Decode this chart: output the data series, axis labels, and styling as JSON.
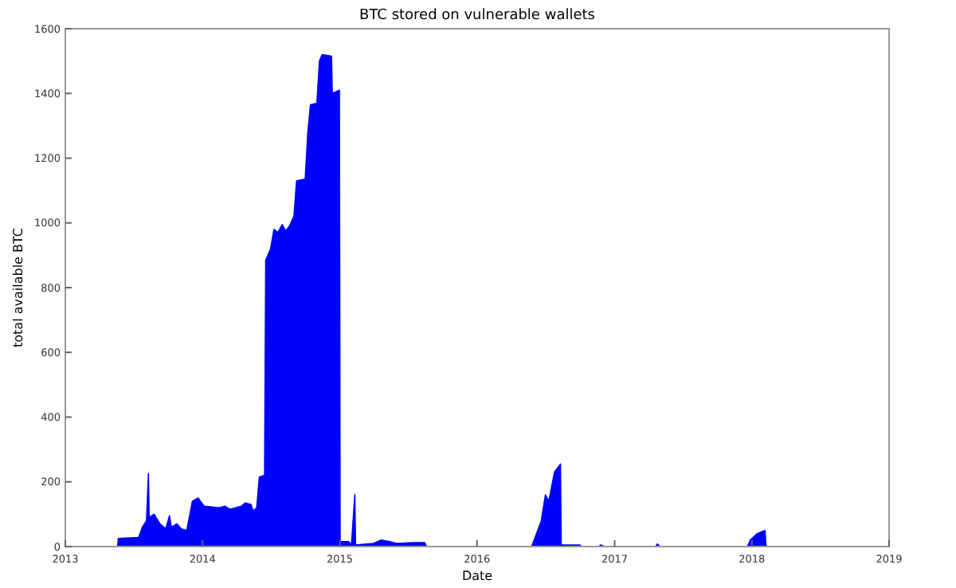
{
  "chart_data": {
    "type": "area",
    "title": "BTC stored on vulnerable wallets",
    "xlabel": "Date",
    "ylabel": "total available BTC",
    "x": [
      "2013-01-01",
      "2013-05-20",
      "2013-05-22",
      "2013-07-15",
      "2013-07-25",
      "2013-08-05",
      "2013-08-10",
      "2013-08-12",
      "2013-08-25",
      "2013-09-10",
      "2013-09-25",
      "2013-10-05",
      "2013-10-10",
      "2013-10-25",
      "2013-11-05",
      "2013-11-20",
      "2013-11-25",
      "2013-12-05",
      "2013-12-20",
      "2014-01-05",
      "2014-02-15",
      "2014-03-01",
      "2014-03-15",
      "2014-04-15",
      "2014-04-25",
      "2014-05-10",
      "2014-05-15",
      "2014-05-25",
      "2014-06-01",
      "2014-06-15",
      "2014-06-18",
      "2014-07-01",
      "2014-07-10",
      "2014-07-20",
      "2014-08-01",
      "2014-08-10",
      "2014-08-20",
      "2014-09-01",
      "2014-09-08",
      "2014-10-01",
      "2014-10-08",
      "2014-10-15",
      "2014-11-01",
      "2014-11-08",
      "2014-11-15",
      "2014-12-10",
      "2014-12-12",
      "2014-12-31",
      "2015-01-02",
      "2015-01-05",
      "2015-01-25",
      "2015-02-01",
      "2015-02-10",
      "2015-02-12",
      "2015-04-01",
      "2015-04-20",
      "2015-05-15",
      "2015-06-01",
      "2015-07-15",
      "2015-08-15",
      "2015-08-20",
      "2016-05-25",
      "2016-06-01",
      "2016-06-20",
      "2016-07-01",
      "2016-07-10",
      "2016-07-25",
      "2016-08-10",
      "2016-08-12",
      "2016-09-30",
      "2016-10-05",
      "2016-11-20",
      "2016-11-25",
      "2016-12-05",
      "2017-04-20",
      "2017-04-25",
      "2017-05-01",
      "2017-12-20",
      "2017-12-28",
      "2018-01-15",
      "2018-02-05",
      "2018-02-08",
      "2019-01-01"
    ],
    "series": [
      {
        "color": "#0000ff",
        "values": [
          0,
          0,
          25,
          28,
          60,
          80,
          225,
          90,
          100,
          70,
          55,
          95,
          60,
          70,
          55,
          50,
          80,
          140,
          150,
          125,
          120,
          125,
          115,
          125,
          135,
          130,
          110,
          120,
          215,
          220,
          885,
          920,
          980,
          970,
          995,
          975,
          990,
          1020,
          1130,
          1135,
          1280,
          1365,
          1370,
          1500,
          1520,
          1515,
          1400,
          1410,
          0,
          15,
          15,
          5,
          160,
          5,
          10,
          20,
          15,
          10,
          12,
          12,
          0,
          0,
          20,
          80,
          160,
          140,
          230,
          255,
          5,
          5,
          0,
          0,
          5,
          0,
          0,
          8,
          0,
          0,
          20,
          40,
          50,
          0,
          0
        ]
      }
    ],
    "xlim": [
      "2013-01-01",
      "2019-01-01"
    ],
    "xticks": [
      {
        "value": "2013-01-01",
        "label": "2013"
      },
      {
        "value": "2014-01-01",
        "label": "2014"
      },
      {
        "value": "2015-01-01",
        "label": "2015"
      },
      {
        "value": "2016-01-01",
        "label": "2016"
      },
      {
        "value": "2017-01-01",
        "label": "2017"
      },
      {
        "value": "2018-01-01",
        "label": "2018"
      },
      {
        "value": "2019-01-01",
        "label": "2019"
      }
    ],
    "ylim": [
      0,
      1600
    ],
    "yticks": [
      0,
      200,
      400,
      600,
      800,
      1000,
      1200,
      1400,
      1600
    ],
    "grid": false
  }
}
